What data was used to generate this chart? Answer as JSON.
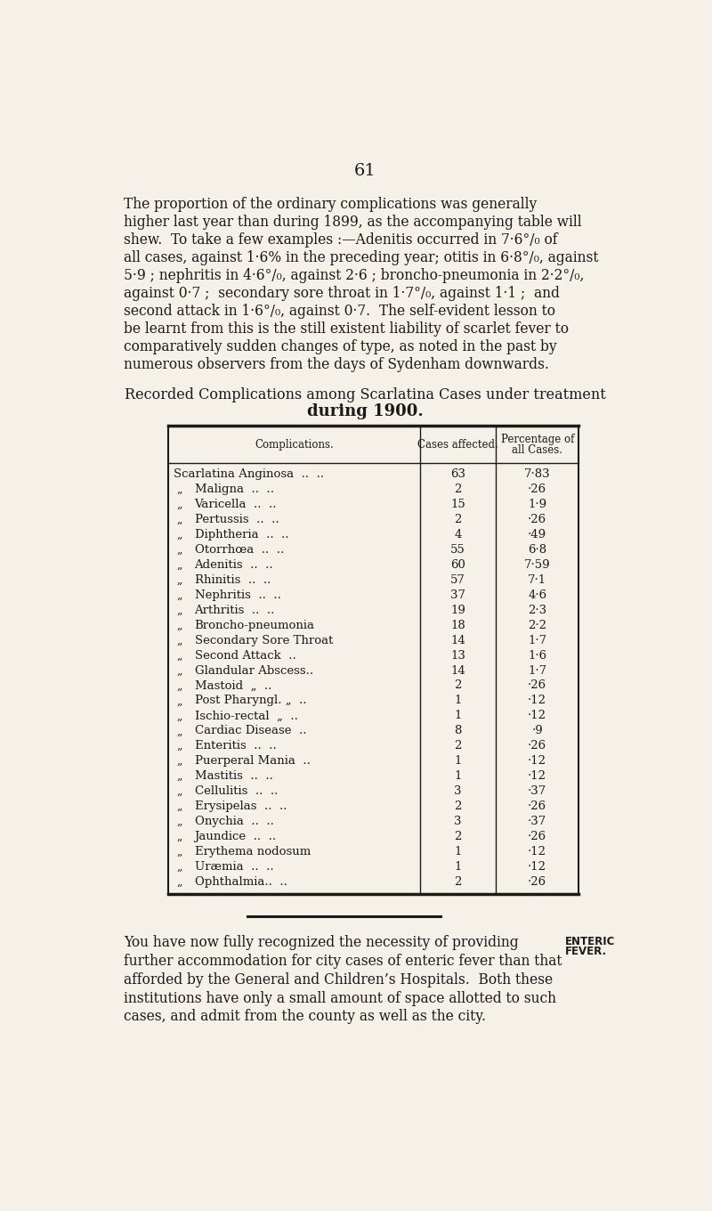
{
  "background_color": "#f5f0e8",
  "page_number": "61",
  "intro_lines": [
    "The proportion of the ordinary complications was generally",
    "higher last year than during 1899, as the accompanying table will",
    "shew.  To take a few examples :—Adenitis occurred in 7·6°/₀ of",
    "all cases, against 1·6% in the preceding year; otitis in 6·8°/₀, against",
    "5·9 ; nephritis in 4·6°/₀, against 2·6 ; broncho-pneumonia in 2·2°/₀,",
    "against 0·7 ;  secondary sore throat in 1·7°/₀, against 1·1 ;  and",
    "second attack in 1·6°/₀, against 0·7.  The self-evident lesson to",
    "be learnt from this is the still existent liability of scarlet fever to",
    "comparatively sudden changes of type, as noted in the past by",
    "numerous observers from the days of Sydenham downwards."
  ],
  "table_title_line1": "Recorded Complications among Scarlatina Cases under treatment",
  "table_title_line2": "during 1900.",
  "col_header1": "Complications.",
  "col_header2": "Cases affected.",
  "col_header3a": "Percentage of",
  "col_header3b": "all Cases.",
  "rows": [
    [
      "Scarlatina Anginosa  ..  ..",
      "63",
      "7·83"
    ],
    [
      "„       Maligna  ..  ..",
      "2",
      "·26"
    ],
    [
      "„       Varicella  ..  ..",
      "15",
      "1·9"
    ],
    [
      "„       Pertussis  ..  ..",
      "2",
      "·26"
    ],
    [
      "„       Diphtheria  ..  ..",
      "4",
      "·49"
    ],
    [
      "„       Otorrhœa  ..  ..",
      "55",
      "6·8"
    ],
    [
      "„       Adenitis  ..  ..",
      "60",
      "7·59"
    ],
    [
      "„       Rhinitis  ..  ..",
      "57",
      "7·1"
    ],
    [
      "„       Nephritis  ..  ..",
      "37",
      "4·6"
    ],
    [
      "„       Arthritis  ..  ..",
      "19",
      "2·3"
    ],
    [
      "„       Broncho-pneumonia",
      "18",
      "2·2"
    ],
    [
      "„       Secondary Sore Throat",
      "14",
      "1·7"
    ],
    [
      "„       Second Attack  ..",
      "13",
      "1·6"
    ],
    [
      "„       Glandular Abscess..",
      "14",
      "1·7"
    ],
    [
      "„       Mastoid  „  ..",
      "2",
      "·26"
    ],
    [
      "„       Post Pharyngl. „  ..",
      "1",
      "·12"
    ],
    [
      "„       Ischio-rectal  „  ..",
      "1",
      "·12"
    ],
    [
      "„       Cardiac Disease  ..",
      "8",
      "·9"
    ],
    [
      "„       Enteritis  ..  ..",
      "2",
      "·26"
    ],
    [
      "„       Puerperal Mania  ..",
      "1",
      "·12"
    ],
    [
      "„       Mastitis  ..  ..",
      "1",
      "·12"
    ],
    [
      "„       Cellulitis  ..  ..",
      "3",
      "·37"
    ],
    [
      "„       Erysipelas  ..  ..",
      "2",
      "·26"
    ],
    [
      "„       Onychia  ..  ..",
      "3",
      "·37"
    ],
    [
      "„       Jaundice  ..  ..",
      "2",
      "·26"
    ],
    [
      "„       Erythema nodosum",
      "1",
      "·12"
    ],
    [
      "„       Uræmia  ..  ..",
      "1",
      "·12"
    ],
    [
      "„       Ophthalmia..  ..",
      "2",
      "·26"
    ]
  ],
  "footer_lines": [
    "You have now fully recognized the necessity of providing",
    "further accommodation for city cases of enteric fever than that",
    "afforded by the General and Children’s Hospitals.  Both these",
    "institutions have only a small amount of space allotted to such",
    "cases, and admit from the county as well as the city."
  ],
  "footer_annotation1": "ENTERIC",
  "footer_annotation2": "FEVER.",
  "text_color": "#1a1a1a",
  "table_border_color": "#1a1a1a"
}
